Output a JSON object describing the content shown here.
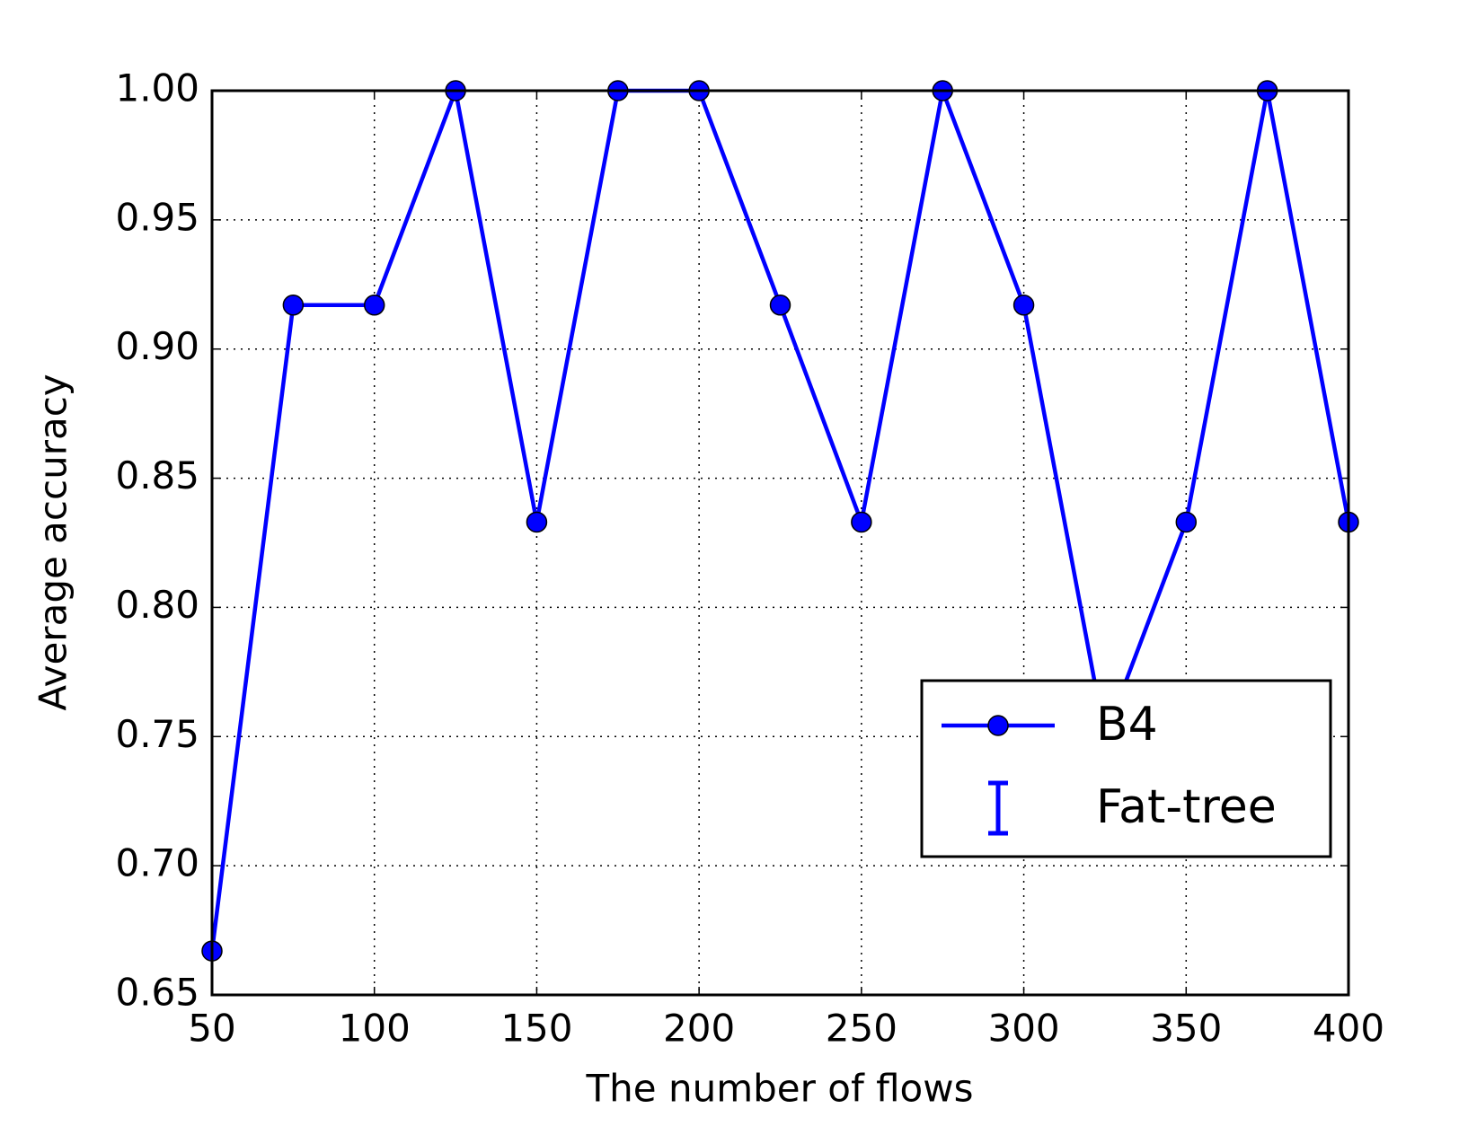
{
  "chart_data": {
    "type": "line",
    "x_label": "The number of flows",
    "y_label": "Average accuracy",
    "x": [
      50,
      75,
      100,
      125,
      150,
      175,
      200,
      225,
      250,
      275,
      300,
      325,
      350,
      375,
      400
    ],
    "series": [
      {
        "name": "B4",
        "color": "#0000ff",
        "marker": "circle",
        "values": [
          0.667,
          0.917,
          0.917,
          1.0,
          0.833,
          1.0,
          1.0,
          0.917,
          0.833,
          1.0,
          0.917,
          0.75,
          0.833,
          1.0,
          0.833
        ]
      },
      {
        "name": "Fat-tree",
        "color": "#0000ff",
        "marker": "errorbar",
        "values": [
          null,
          null,
          null,
          null,
          null,
          null,
          null,
          null,
          null,
          null,
          null,
          null,
          null,
          null,
          null
        ]
      }
    ],
    "xlim": [
      50,
      400
    ],
    "xticks": [
      50,
      100,
      150,
      200,
      250,
      300,
      350,
      400
    ],
    "ylim": [
      0.65,
      1.0
    ],
    "yticks": [
      {
        "value": 0.65,
        "label": "0.65"
      },
      {
        "value": 0.7,
        "label": "0.70"
      },
      {
        "value": 0.75,
        "label": "0.75"
      },
      {
        "value": 0.8,
        "label": "0.80"
      },
      {
        "value": 0.85,
        "label": "0.85"
      },
      {
        "value": 0.9,
        "label": "0.90"
      },
      {
        "value": 0.95,
        "label": "0.95"
      },
      {
        "value": 1.0,
        "label": "1.00"
      }
    ],
    "grid": true,
    "legend": "lower right"
  }
}
